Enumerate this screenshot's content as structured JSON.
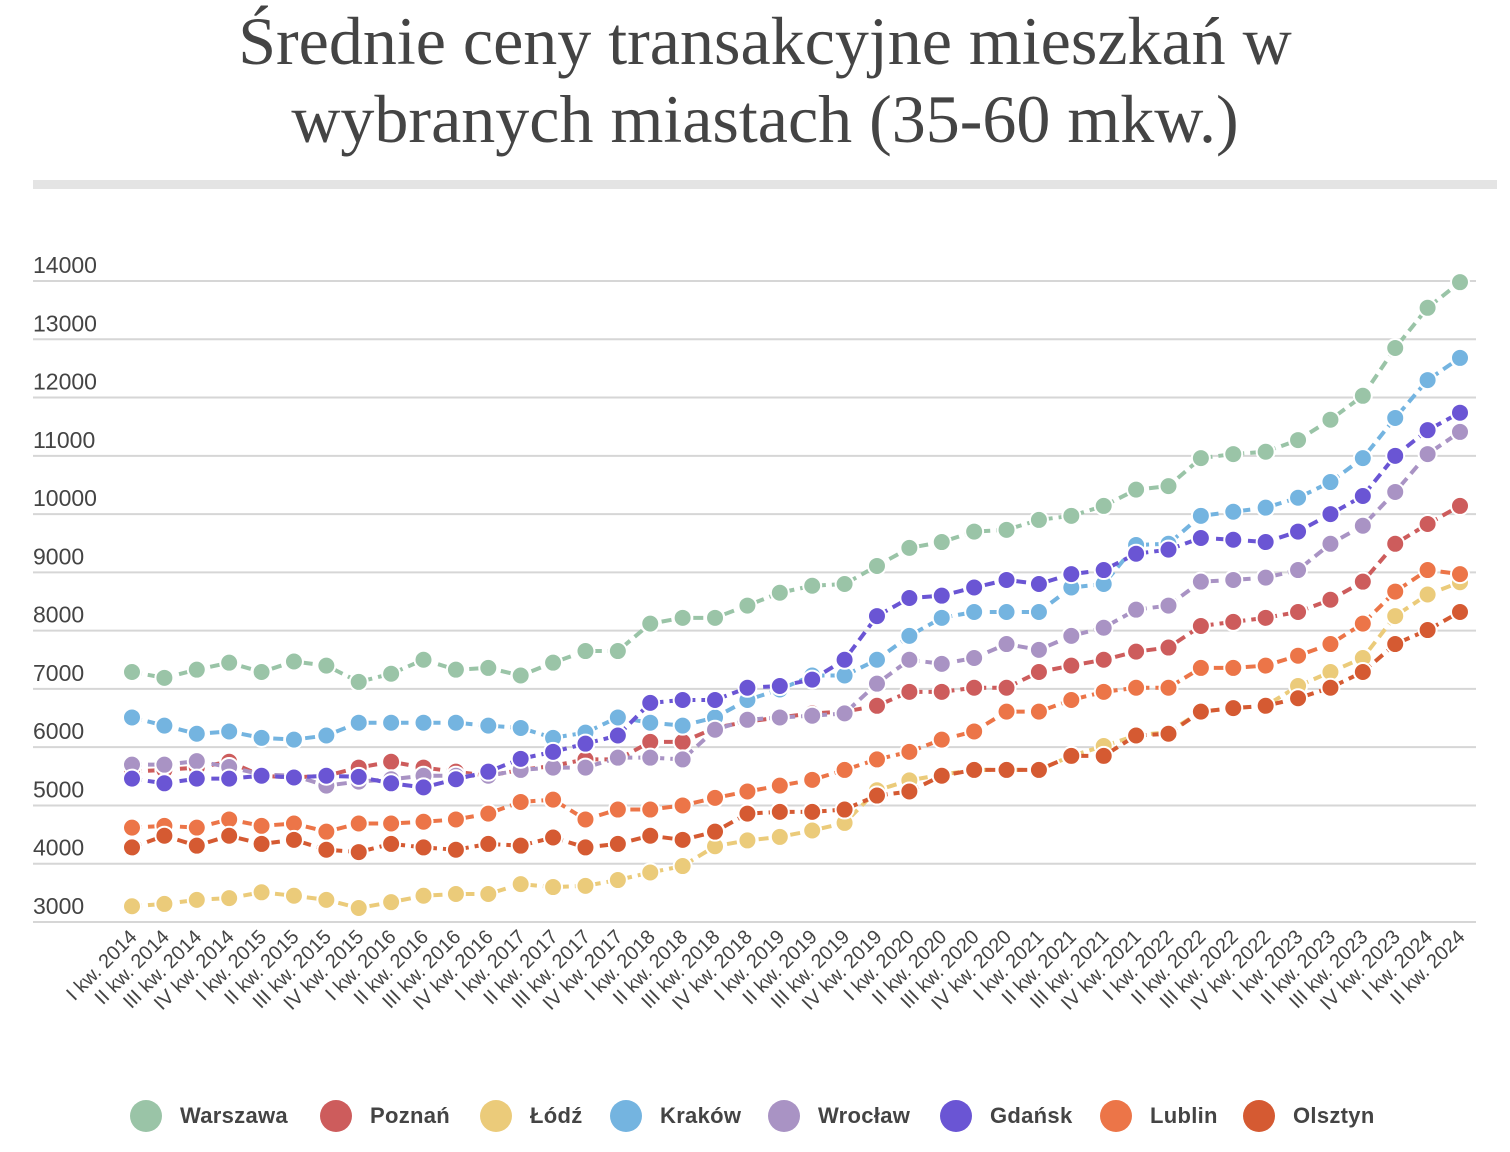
{
  "title_line1": "Średnie ceny transakcyjne mieszkań w",
  "title_line2": "wybranych miastach (35-60 mkw.)",
  "chart_data": {
    "type": "line",
    "title": "Średnie ceny transakcyjne mieszkań w wybranych miastach (35-60 mkw.)",
    "xlabel": "",
    "ylabel": "",
    "ylim": [
      3000,
      14000
    ],
    "yticks": [
      3000,
      4000,
      5000,
      6000,
      7000,
      8000,
      9000,
      10000,
      11000,
      12000,
      13000,
      14000
    ],
    "grid": true,
    "legend_position": "bottom",
    "categories": [
      "I kw. 2014",
      "II kw. 2014",
      "III kw. 2014",
      "IV kw. 2014",
      "I kw. 2015",
      "II kw. 2015",
      "III kw. 2015",
      "IV kw. 2015",
      "I kw. 2016",
      "II kw. 2016",
      "III kw. 2016",
      "IV kw. 2016",
      "I kw. 2017",
      "II kw. 2017",
      "III kw. 2017",
      "IV kw. 2017",
      "I kw. 2018",
      "II kw. 2018",
      "III kw. 2018",
      "IV kw. 2018",
      "I kw. 2019",
      "II kw. 2019",
      "III kw. 2019",
      "IV kw. 2019",
      "I kw. 2020",
      "II kw. 2020",
      "III kw. 2020",
      "IV kw. 2020",
      "I kw. 2021",
      "II kw. 2021",
      "III kw. 2021",
      "IV kw. 2021",
      "I kw. 2022",
      "II kw. 2022",
      "III kw. 2022",
      "IV kw. 2022",
      "I kw. 2023",
      "II kw. 2023",
      "III kw. 2023",
      "IV kw. 2023",
      "I kw. 2024",
      "II kw. 2024"
    ],
    "series": [
      {
        "name": "Warszawa",
        "color": "#9ac4a7",
        "values": [
          7290,
          7190,
          7330,
          7450,
          7290,
          7470,
          7400,
          7120,
          7260,
          7500,
          7330,
          7360,
          7230,
          7450,
          7650,
          7650,
          8120,
          8220,
          8220,
          8430,
          8650,
          8770,
          8800,
          9110,
          9420,
          9520,
          9700,
          9730,
          9900,
          9970,
          10140,
          10420,
          10480,
          10960,
          11030,
          11070,
          11270,
          11620,
          12030,
          12850,
          13540,
          13980
        ]
      },
      {
        "name": "Poznań",
        "color": "#cd5c5c",
        "values": [
          5580,
          5610,
          5650,
          5750,
          5510,
          5480,
          5510,
          5650,
          5750,
          5650,
          5580,
          5510,
          5610,
          5680,
          5790,
          5790,
          6090,
          6090,
          6330,
          6440,
          6510,
          6580,
          6610,
          6710,
          6950,
          6950,
          7020,
          7020,
          7290,
          7400,
          7500,
          7640,
          7710,
          8080,
          8150,
          8220,
          8320,
          8530,
          8840,
          9490,
          9830,
          10140
        ]
      },
      {
        "name": "Łódź",
        "color": "#ebcb7a",
        "values": [
          3270,
          3310,
          3380,
          3410,
          3510,
          3450,
          3380,
          3240,
          3340,
          3450,
          3480,
          3480,
          3650,
          3600,
          3620,
          3720,
          3850,
          3960,
          4300,
          4400,
          4460,
          4570,
          4700,
          5260,
          5430,
          5530,
          5610,
          5610,
          5610,
          5850,
          6020,
          6200,
          6260,
          6610,
          6670,
          6710,
          7050,
          7290,
          7530,
          8250,
          8620,
          8830
        ]
      },
      {
        "name": "Kraków",
        "color": "#74b4e0",
        "values": [
          6510,
          6370,
          6230,
          6270,
          6160,
          6130,
          6200,
          6420,
          6420,
          6420,
          6420,
          6370,
          6330,
          6160,
          6250,
          6510,
          6420,
          6370,
          6510,
          6810,
          6990,
          7230,
          7230,
          7500,
          7910,
          8220,
          8320,
          8320,
          8320,
          8740,
          8800,
          9470,
          9490,
          9970,
          10040,
          10110,
          10280,
          10550,
          10960,
          11650,
          12300,
          12680
        ]
      },
      {
        "name": "Wrocław",
        "color": "#a993c4",
        "values": [
          5700,
          5700,
          5760,
          5660,
          5530,
          5510,
          5340,
          5410,
          5450,
          5510,
          5510,
          5510,
          5610,
          5650,
          5650,
          5820,
          5820,
          5790,
          6300,
          6470,
          6510,
          6540,
          6580,
          7090,
          7500,
          7430,
          7530,
          7770,
          7670,
          7910,
          8050,
          8360,
          8430,
          8840,
          8870,
          8910,
          9040,
          9490,
          9800,
          10380,
          11030,
          11410
        ]
      },
      {
        "name": "Gdańsk",
        "color": "#6a55d4",
        "values": [
          5460,
          5380,
          5460,
          5460,
          5510,
          5480,
          5510,
          5490,
          5380,
          5310,
          5450,
          5580,
          5800,
          5920,
          6060,
          6200,
          6760,
          6810,
          6810,
          7020,
          7050,
          7160,
          7500,
          8250,
          8560,
          8600,
          8740,
          8870,
          8800,
          8970,
          9040,
          9320,
          9390,
          9590,
          9560,
          9520,
          9700,
          10000,
          10310,
          11000,
          11440,
          11740
        ]
      },
      {
        "name": "Lublin",
        "color": "#ec7548",
        "values": [
          4620,
          4650,
          4620,
          4760,
          4650,
          4690,
          4550,
          4690,
          4690,
          4720,
          4760,
          4860,
          5060,
          5100,
          4760,
          4930,
          4930,
          5000,
          5130,
          5240,
          5340,
          5440,
          5610,
          5790,
          5920,
          6130,
          6270,
          6610,
          6610,
          6810,
          6950,
          7020,
          7020,
          7360,
          7360,
          7400,
          7570,
          7770,
          8120,
          8670,
          9040,
          8970
        ]
      },
      {
        "name": "Olsztyn",
        "color": "#d55a32",
        "values": [
          4280,
          4480,
          4310,
          4480,
          4340,
          4410,
          4240,
          4200,
          4340,
          4280,
          4240,
          4340,
          4310,
          4450,
          4280,
          4340,
          4480,
          4410,
          4550,
          4860,
          4890,
          4890,
          4930,
          5170,
          5240,
          5510,
          5610,
          5610,
          5610,
          5850,
          5850,
          6200,
          6230,
          6610,
          6670,
          6710,
          6840,
          7020,
          7290,
          7770,
          8010,
          8320
        ]
      }
    ]
  }
}
